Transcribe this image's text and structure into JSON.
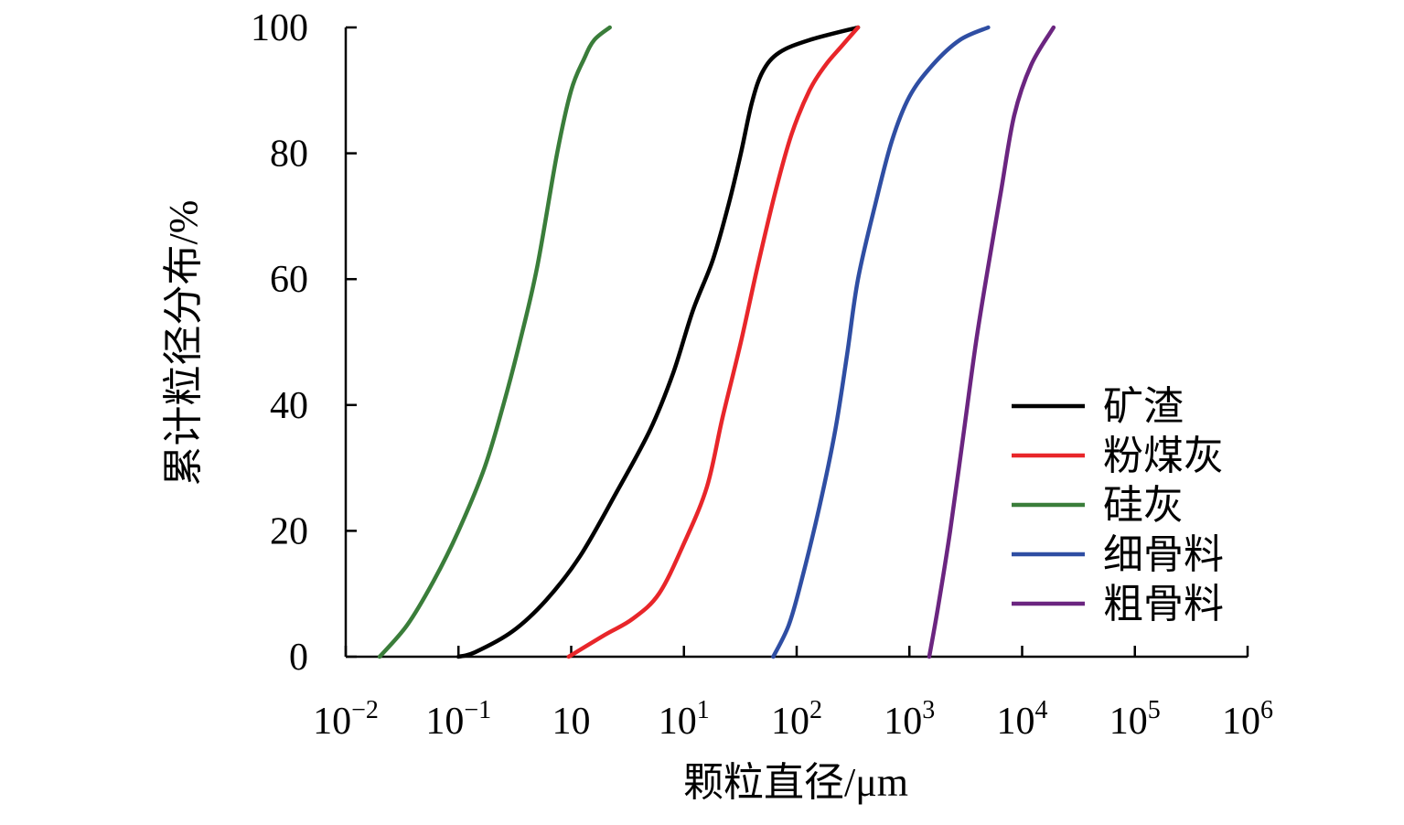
{
  "chart_data": {
    "type": "line",
    "title": "",
    "xlabel": "颗粒直径/μm",
    "ylabel": "累计粒径分布/%",
    "x_scale": "log",
    "xlim": [
      0.01,
      1000000
    ],
    "ylim": [
      0,
      100
    ],
    "x_tick_labels": [
      {
        "base": "10",
        "exp": "−2"
      },
      {
        "base": "10",
        "exp": "−1"
      },
      {
        "base": "10",
        "exp": ""
      },
      {
        "base": "10",
        "exp": "1"
      },
      {
        "base": "10",
        "exp": "2"
      },
      {
        "base": "10",
        "exp": "3"
      },
      {
        "base": "10",
        "exp": "4"
      },
      {
        "base": "10",
        "exp": "5"
      },
      {
        "base": "10",
        "exp": "6"
      }
    ],
    "y_ticks": [
      0,
      20,
      40,
      60,
      80,
      100
    ],
    "grid": false,
    "legend_position": "bottom-right",
    "series": [
      {
        "name": "矿渣",
        "color": "#000000",
        "points": [
          [
            0.1,
            0
          ],
          [
            0.14,
            0.7
          ],
          [
            0.3,
            4
          ],
          [
            0.6,
            9
          ],
          [
            1.2,
            16
          ],
          [
            2.5,
            26
          ],
          [
            5,
            36
          ],
          [
            8,
            45
          ],
          [
            12,
            55
          ],
          [
            18,
            63
          ],
          [
            25,
            72
          ],
          [
            32,
            80
          ],
          [
            40,
            88
          ],
          [
            50,
            93
          ],
          [
            70,
            96
          ],
          [
            130,
            98
          ],
          [
            350,
            100
          ]
        ]
      },
      {
        "name": "粉煤灰",
        "color": "#e8262a",
        "points": [
          [
            0.95,
            0
          ],
          [
            2,
            3.5
          ],
          [
            3.5,
            6
          ],
          [
            6,
            10
          ],
          [
            10,
            18
          ],
          [
            16,
            27
          ],
          [
            22,
            38
          ],
          [
            32,
            50
          ],
          [
            45,
            62
          ],
          [
            65,
            74
          ],
          [
            90,
            83
          ],
          [
            130,
            90
          ],
          [
            180,
            94
          ],
          [
            250,
            97
          ],
          [
            350,
            100
          ]
        ]
      },
      {
        "name": "硅灰",
        "color": "#3a7d3a",
        "points": [
          [
            0.02,
            0
          ],
          [
            0.035,
            5
          ],
          [
            0.06,
            12
          ],
          [
            0.1,
            20
          ],
          [
            0.17,
            30
          ],
          [
            0.25,
            40
          ],
          [
            0.35,
            50
          ],
          [
            0.5,
            62
          ],
          [
            0.75,
            80
          ],
          [
            1.0,
            90
          ],
          [
            1.3,
            95
          ],
          [
            1.6,
            98
          ],
          [
            2.2,
            100
          ]
        ]
      },
      {
        "name": "细骨料",
        "color": "#2f4ea3",
        "points": [
          [
            62,
            0
          ],
          [
            85,
            5
          ],
          [
            110,
            12
          ],
          [
            160,
            24
          ],
          [
            220,
            36
          ],
          [
            280,
            48
          ],
          [
            350,
            60
          ],
          [
            500,
            72
          ],
          [
            700,
            82
          ],
          [
            1000,
            89
          ],
          [
            1600,
            94
          ],
          [
            2800,
            98
          ],
          [
            5000,
            100
          ]
        ]
      },
      {
        "name": "粗骨料",
        "color": "#6b2580",
        "points": [
          [
            1500,
            0
          ],
          [
            1800,
            8
          ],
          [
            2300,
            20
          ],
          [
            3000,
            35
          ],
          [
            3900,
            50
          ],
          [
            5000,
            62
          ],
          [
            6500,
            74
          ],
          [
            8500,
            86
          ],
          [
            12000,
            94
          ],
          [
            19000,
            100
          ]
        ]
      }
    ]
  }
}
